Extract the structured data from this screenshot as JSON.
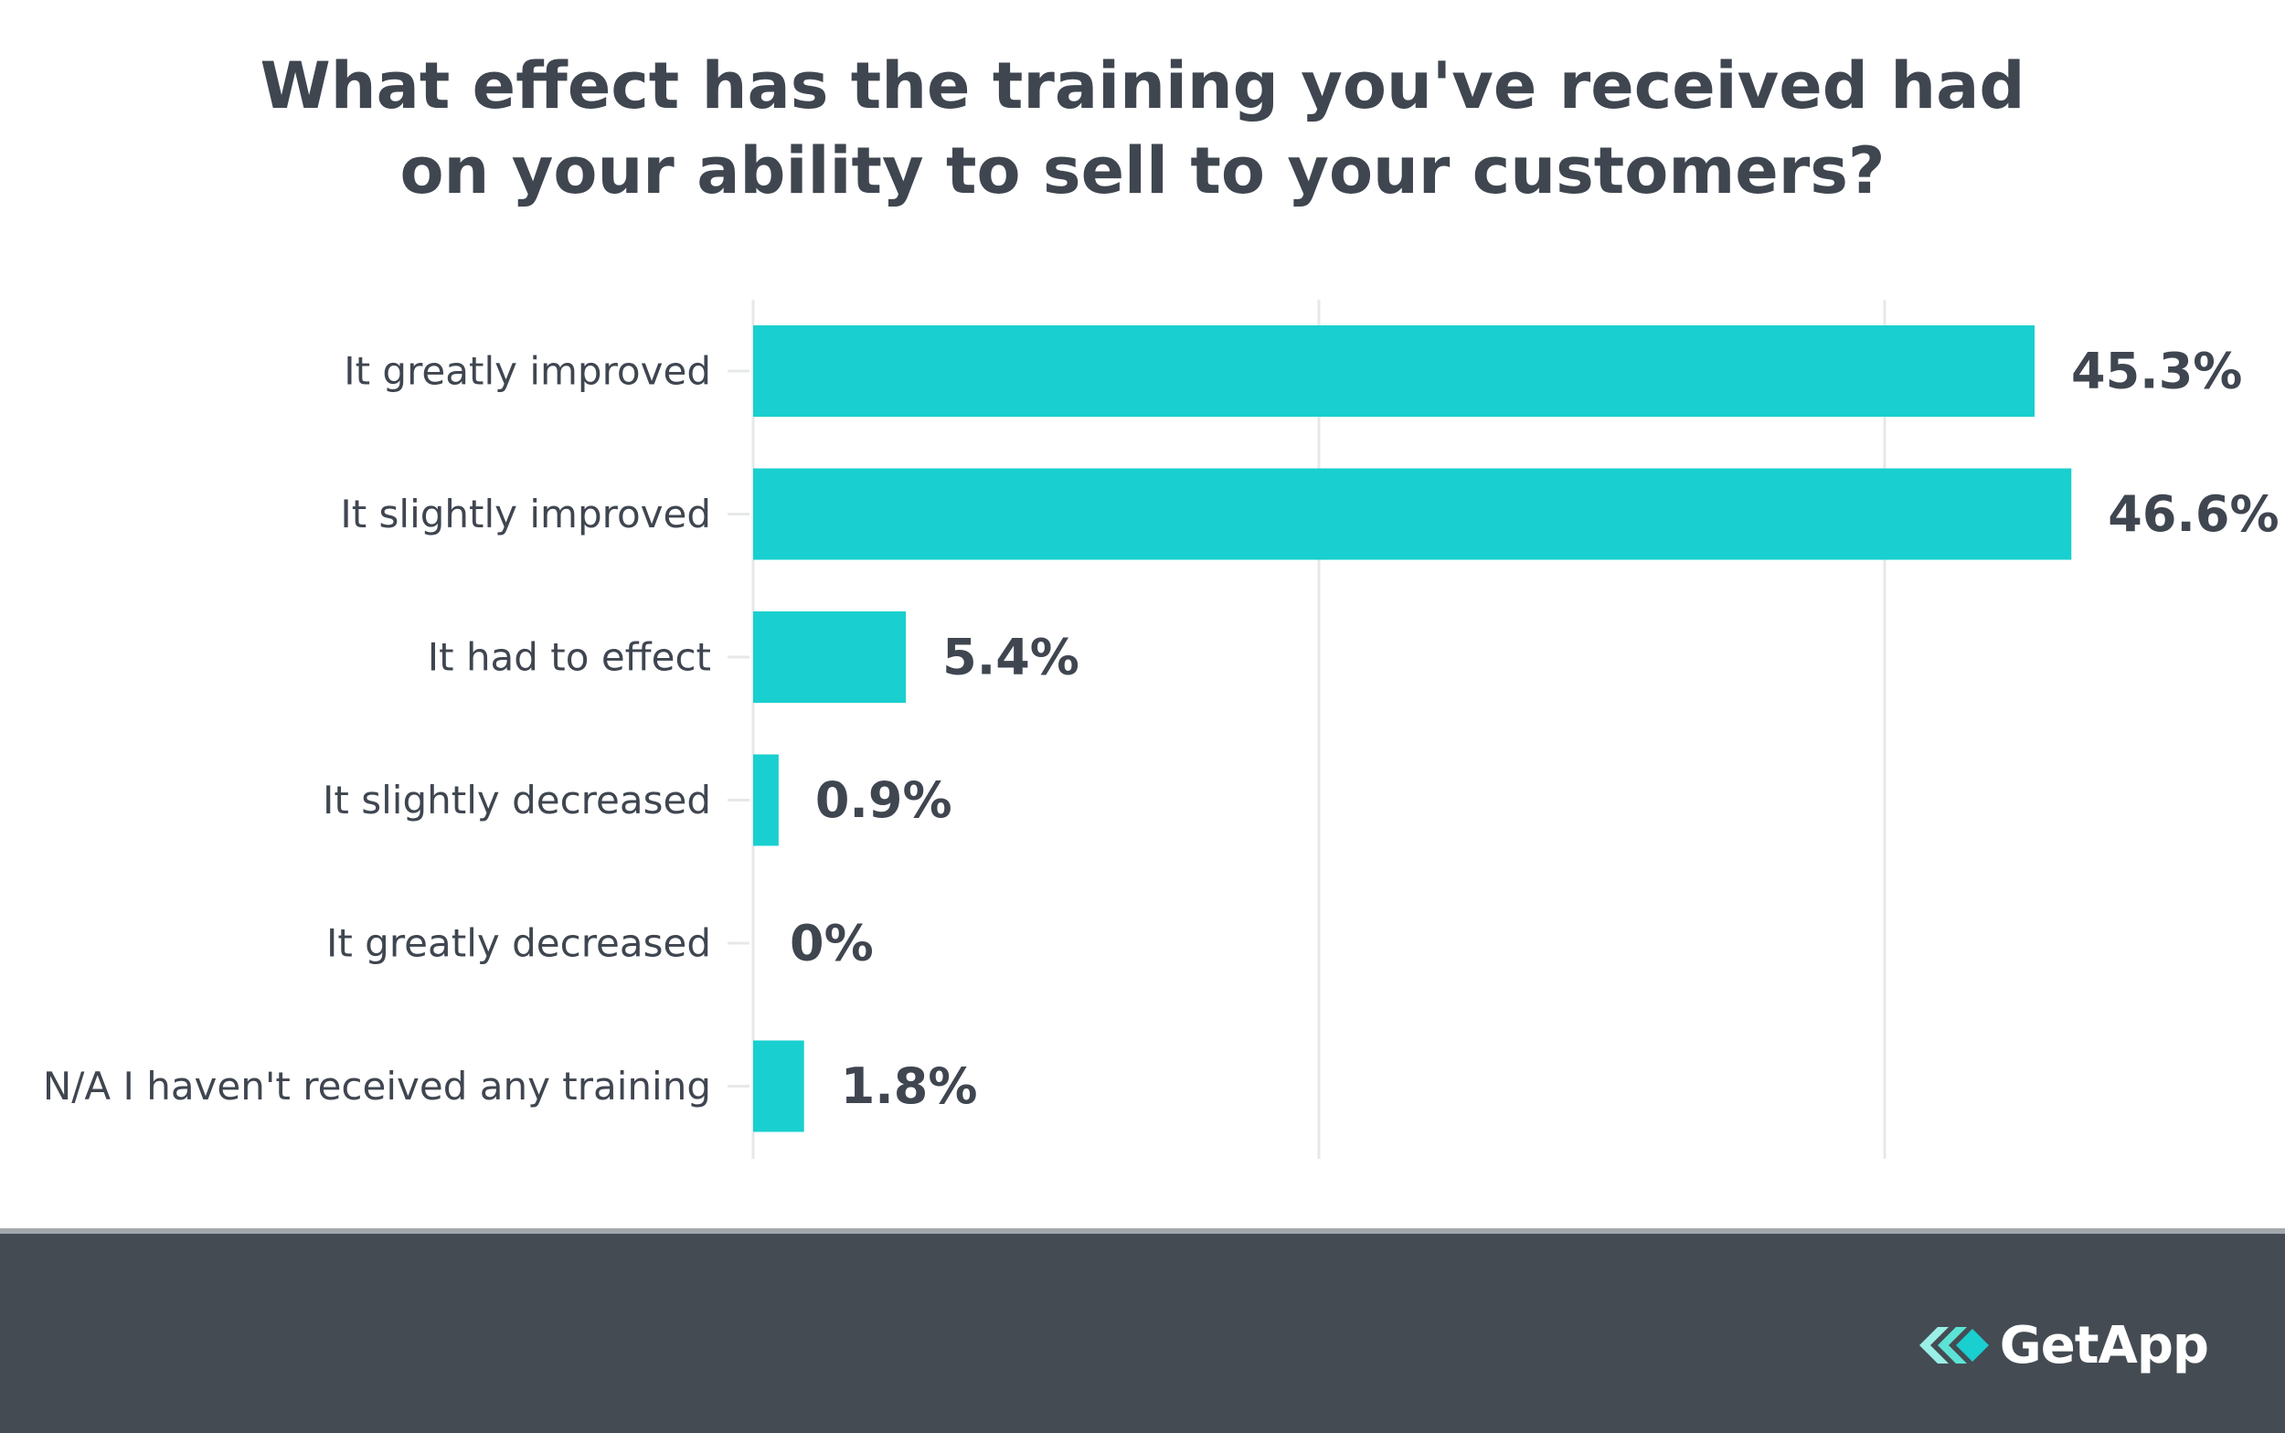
{
  "title": {
    "line1": "What effect has the training you've received had",
    "line2": "on your ability to sell to your customers?"
  },
  "chart_data": {
    "type": "bar",
    "orientation": "horizontal",
    "title": "What effect has the training you've received had on your ability to sell to your customers?",
    "categories": [
      "It greatly improved",
      "It slightly improved",
      "It had to effect",
      "It slightly decreased",
      "It greatly decreased",
      "N/A I haven't received any training"
    ],
    "values": [
      45.3,
      46.6,
      5.4,
      0.9,
      0,
      1.8
    ],
    "value_labels": [
      "45.3%",
      "46.6%",
      "5.4%",
      "0.9%",
      "0%",
      "1.8%"
    ],
    "xlim": [
      0,
      50
    ],
    "gridlines": [
      0,
      20,
      40
    ],
    "grid": true,
    "legend": "none",
    "xlabel": "",
    "ylabel": ""
  },
  "colors": {
    "bar": "#19cfcf",
    "text": "#3f4650",
    "grid": "#e6e8ea",
    "footer": "#444b53",
    "logo_accent": "#5de3d6"
  },
  "footer": {
    "brand": "GetApp"
  }
}
